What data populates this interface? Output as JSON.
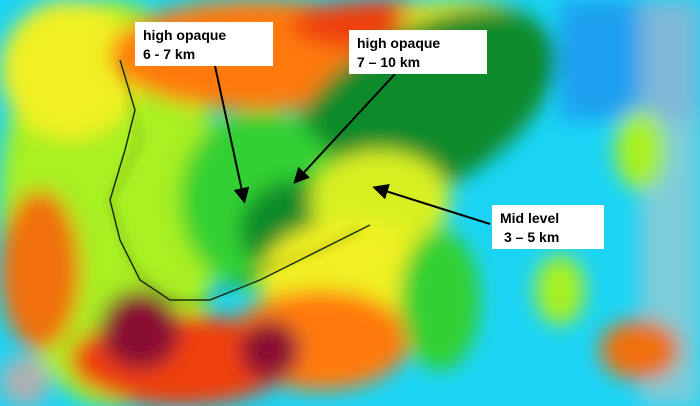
{
  "annotations": [
    {
      "line1": "high opaque",
      "line2": "6 - 7 km"
    },
    {
      "line1": "high opaque",
      "line2": "7 – 10 km"
    },
    {
      "line1": "Mid level",
      "line2": "3 – 5 km"
    }
  ],
  "colors": {
    "high_opaque_dark_green": "#0a8a2a",
    "green": "#30d030",
    "light_green": "#a8f020",
    "yellow": "#f0f020",
    "orange": "#ff7a10",
    "red_orange": "#f04010",
    "maroon": "#8a1030",
    "cyan": "#1bd4f5",
    "blue": "#1aa0f0",
    "gray": "#b0b0b0"
  }
}
